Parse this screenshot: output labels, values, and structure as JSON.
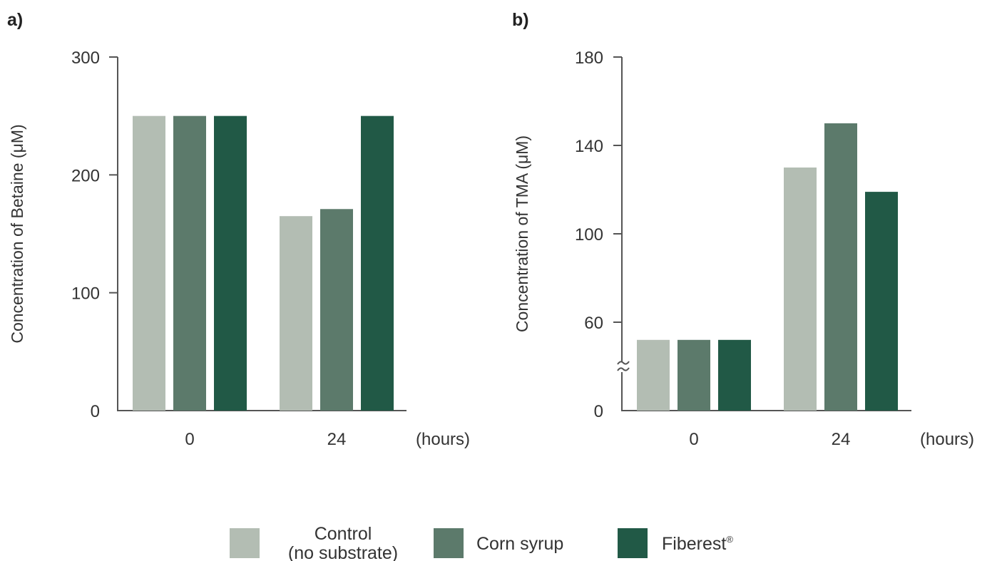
{
  "chart_data": [
    {
      "type": "bar",
      "panel_label": "a)",
      "ylabel": "Concentration of Betaine (μM)",
      "x_unit": "(hours)",
      "categories": [
        "0",
        "24"
      ],
      "ylim": [
        0,
        300
      ],
      "yticks": [
        "0",
        "100",
        "200",
        "300"
      ],
      "ytick_values": [
        0,
        100,
        200,
        300
      ],
      "axis_break": false,
      "series": [
        {
          "key": "control",
          "values": [
            250,
            165
          ]
        },
        {
          "key": "corn",
          "values": [
            250,
            171
          ]
        },
        {
          "key": "fiberest",
          "values": [
            250,
            250
          ]
        }
      ]
    },
    {
      "type": "bar",
      "panel_label": "b)",
      "ylabel": "Concentration of TMA (μM)",
      "x_unit": "(hours)",
      "categories": [
        "0",
        "24"
      ],
      "ylim": [
        0,
        180
      ],
      "yticks": [
        "0",
        "60",
        "100",
        "140",
        "180"
      ],
      "ytick_values": [
        0,
        60,
        100,
        140,
        180
      ],
      "axis_break": true,
      "series": [
        {
          "key": "control",
          "values": [
            48,
            130
          ]
        },
        {
          "key": "corn",
          "values": [
            48,
            150
          ]
        },
        {
          "key": "fiberest",
          "values": [
            48,
            119
          ]
        }
      ]
    }
  ],
  "legend": [
    {
      "key": "control",
      "line1": "Control",
      "line2": "(no substrate)"
    },
    {
      "key": "corn",
      "line1": "Corn syrup",
      "line2": ""
    },
    {
      "key": "fiberest",
      "line1": "Fiberest",
      "sup": "®",
      "line2": ""
    }
  ],
  "colors": {
    "control": "#b3bdb3",
    "corn": "#5c7a6b",
    "fiberest": "#215946"
  }
}
